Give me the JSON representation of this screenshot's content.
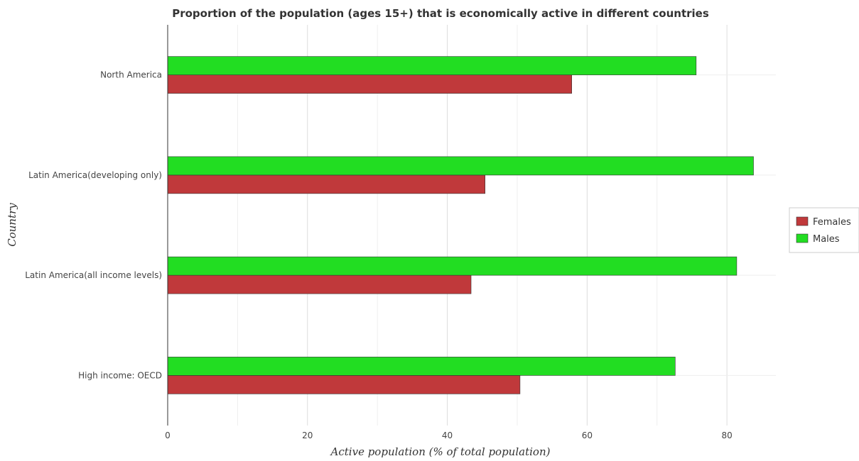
{
  "chart_data": {
    "type": "bar",
    "orientation": "horizontal",
    "title": "Proportion of the population (ages 15+) that is economically active in different countries",
    "xlabel": "Active population (% of total population)",
    "ylabel": "Country",
    "categories": [
      "High income: OECD",
      "Latin America(all income levels)",
      "Latin America(developing only)",
      "North America"
    ],
    "series": [
      {
        "name": "Females",
        "color": "#c0393b",
        "values": [
          50.4,
          43.4,
          45.4,
          57.8
        ]
      },
      {
        "name": "Males",
        "color": "#22dd22",
        "values": [
          72.6,
          81.4,
          83.8,
          75.6
        ]
      }
    ],
    "xlim": [
      0,
      87
    ],
    "xticks": [
      0,
      20,
      40,
      60,
      80
    ],
    "grid": true,
    "legend_position": "right"
  }
}
